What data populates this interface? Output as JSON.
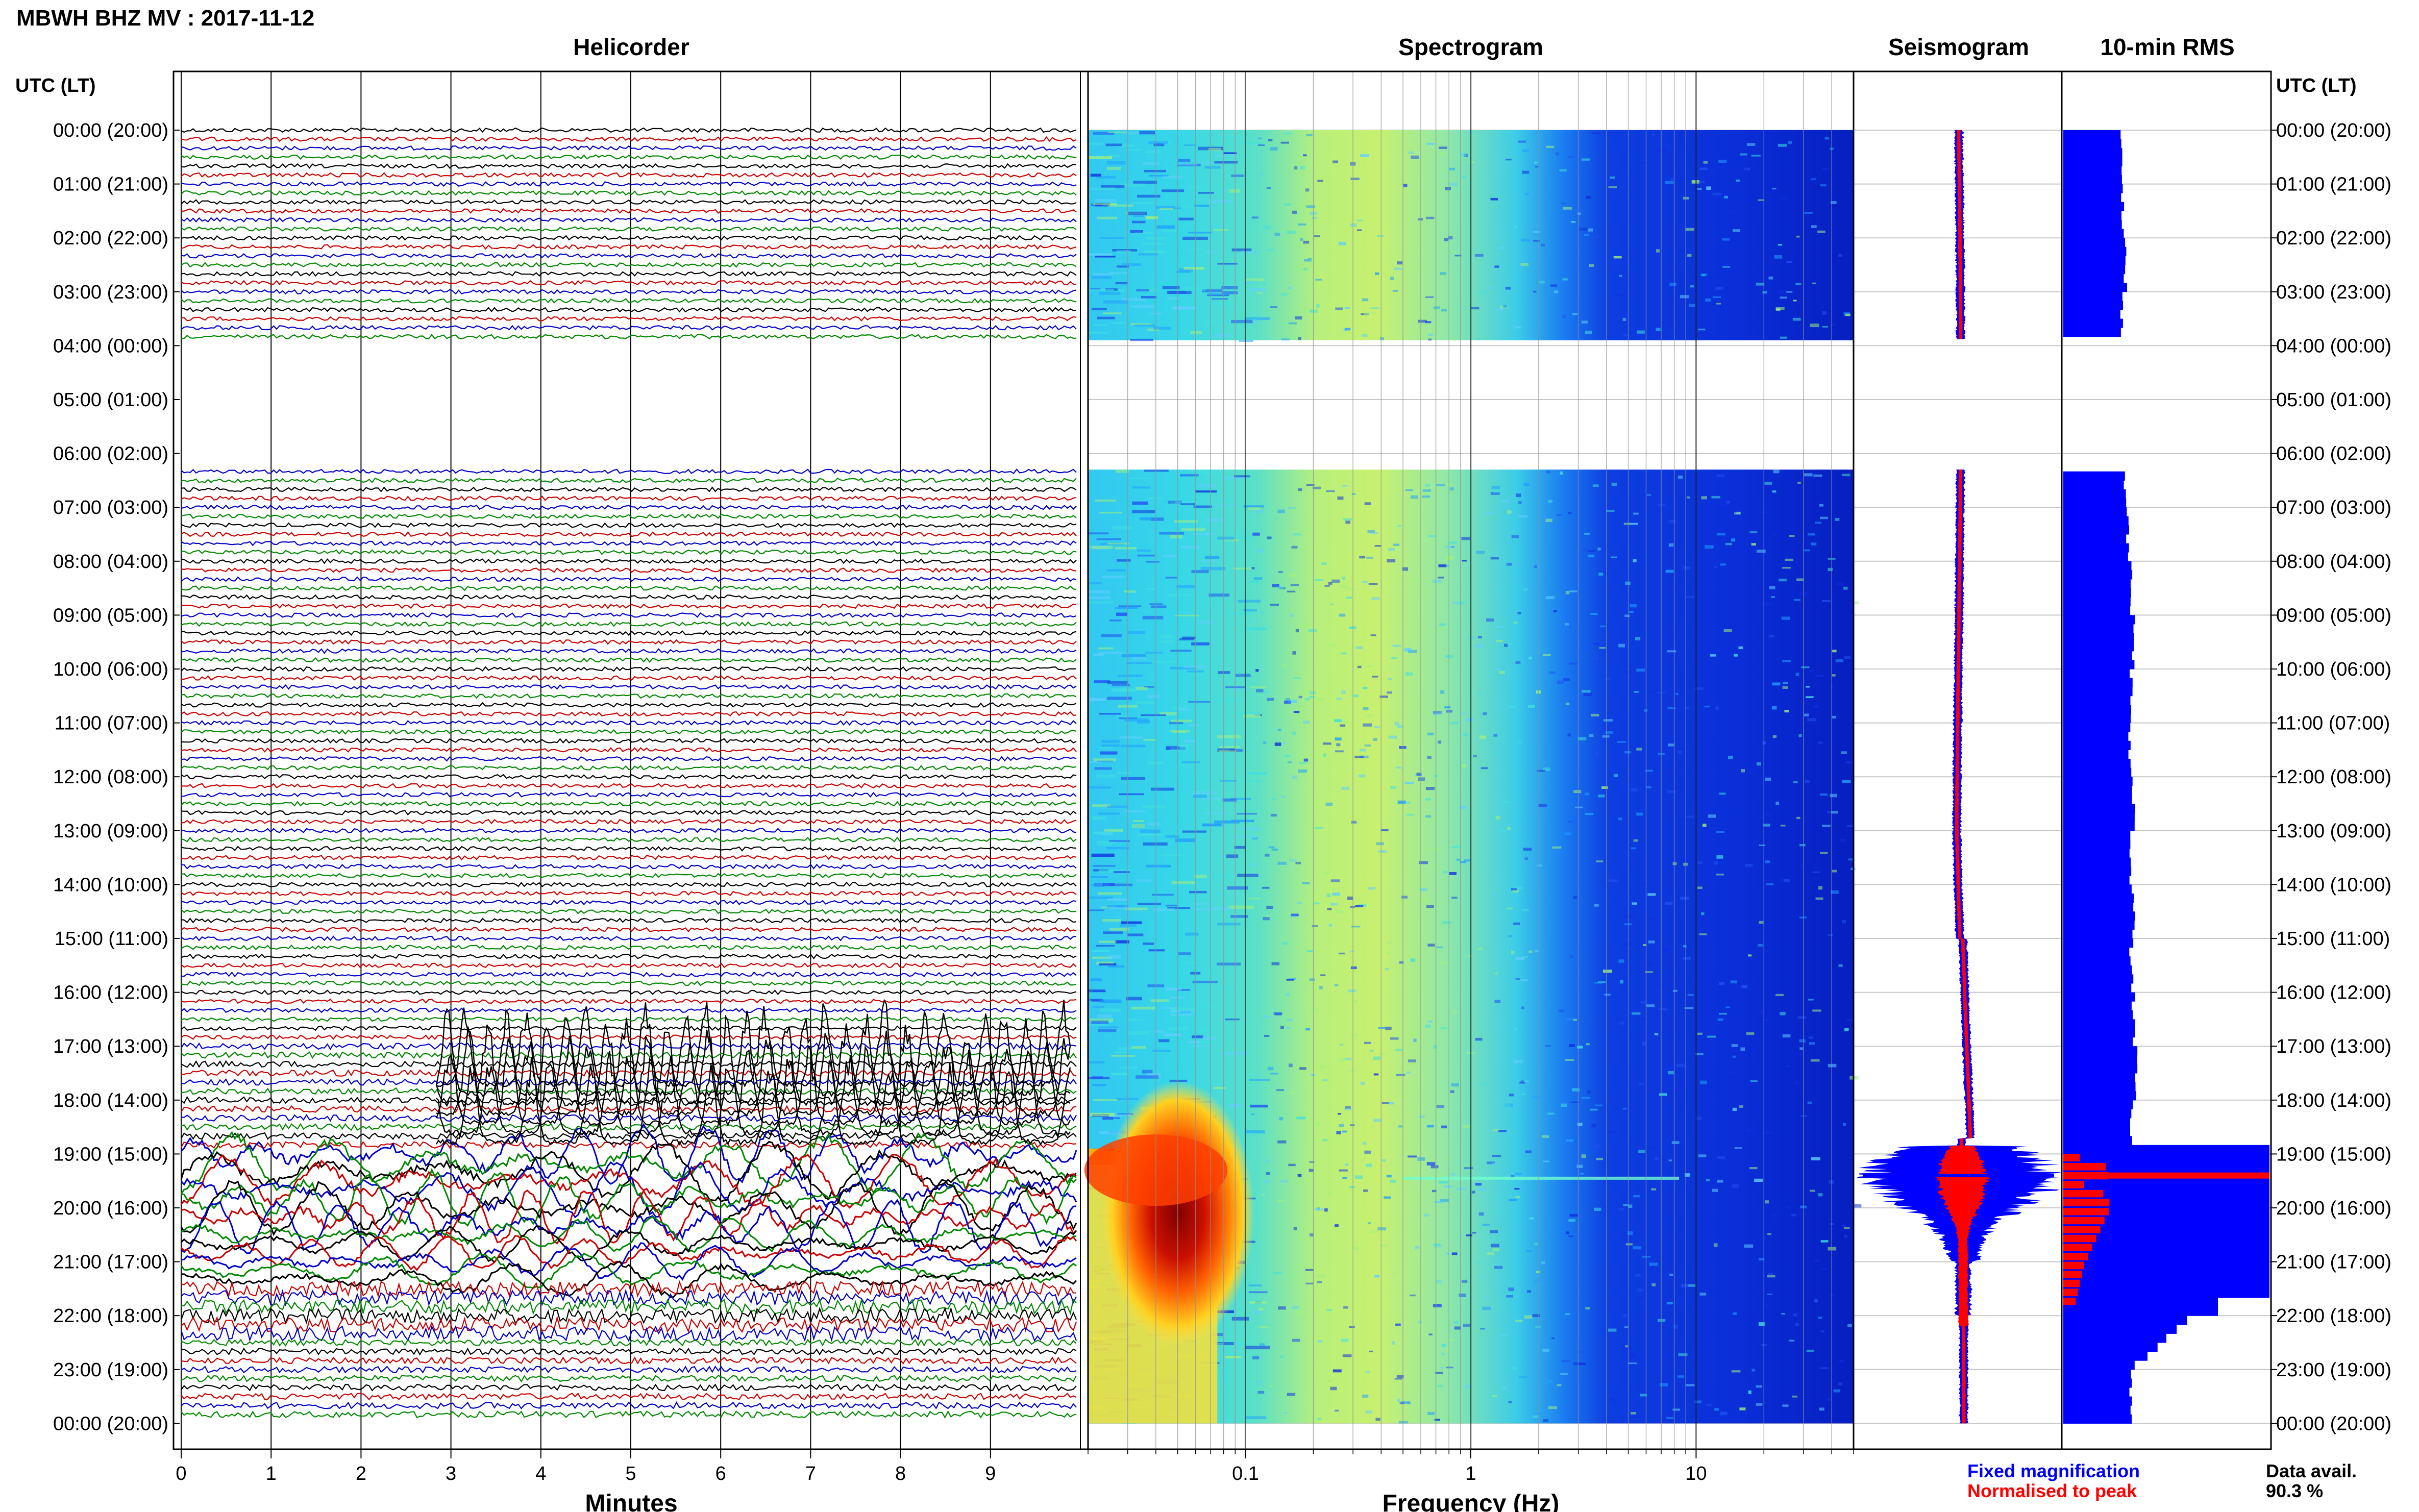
{
  "title": "MBWH BHZ MV : 2017-11-12",
  "panels": {
    "helicorder": "Helicorder",
    "spectrogram": "Spectrogram",
    "seismogram": "Seismogram",
    "rms": "10-min RMS"
  },
  "time_axis_label": "UTC (LT)",
  "hour_labels": [
    "00:00 (20:00)",
    "01:00 (21:00)",
    "02:00 (22:00)",
    "03:00 (23:00)",
    "04:00 (00:00)",
    "05:00 (01:00)",
    "06:00 (02:00)",
    "07:00 (03:00)",
    "08:00 (04:00)",
    "09:00 (05:00)",
    "10:00 (06:00)",
    "11:00 (07:00)",
    "12:00 (08:00)",
    "13:00 (09:00)",
    "14:00 (10:00)",
    "15:00 (11:00)",
    "16:00 (12:00)",
    "17:00 (13:00)",
    "18:00 (14:00)",
    "19:00 (15:00)",
    "20:00 (16:00)",
    "21:00 (17:00)",
    "22:00 (18:00)",
    "23:00 (19:00)",
    "00:00 (20:00)"
  ],
  "legend": {
    "fixed": "Fixed magnification",
    "normalised": "Normalised to peak",
    "fixed_color": "#0000ff",
    "normalised_color": "#ff0000"
  },
  "availability": {
    "label": "Data avail.",
    "value": "90.3 %"
  },
  "colors": {
    "trace_cycle": [
      "#000000",
      "#cc0000",
      "#0000cc",
      "#008800"
    ]
  },
  "chart_data": [
    {
      "type": "line",
      "title": "Helicorder",
      "xlabel": "Minutes",
      "ylabel": "UTC (LT)",
      "xlim": [
        0,
        10
      ],
      "x_ticks": [
        "0",
        "1",
        "2",
        "3",
        "4",
        "5",
        "6",
        "7",
        "8",
        "9"
      ],
      "row_minutes": 10,
      "data_gap_utc_hours": [
        3.9,
        6.3
      ],
      "event_onset_utc_hour": 18.9,
      "large_amplitude_hours": [
        17.0,
        22.5
      ]
    },
    {
      "type": "heatmap",
      "title": "Spectrogram",
      "xlabel": "Frequency (Hz)",
      "x_scale": "log",
      "xlim": [
        0.02,
        50
      ],
      "x_ticks": [
        "0.1",
        "1",
        "10"
      ],
      "colormap": "jet",
      "data_gap_utc_hours": [
        3.9,
        6.3
      ],
      "event_utc_hours": [
        18.9,
        22.0
      ],
      "event_peak_frequency_hz": 0.05,
      "tonal_line_hz": 7
    },
    {
      "type": "line",
      "title": "Seismogram",
      "series": [
        {
          "name": "Fixed magnification",
          "color": "#0000ff"
        },
        {
          "name": "Normalised to peak",
          "color": "#ff0000"
        }
      ],
      "peak_utc_hour": 19.4
    },
    {
      "type": "bar",
      "title": "10-min RMS",
      "orientation": "horizontal",
      "hour_starts": [
        0,
        1,
        2,
        3,
        6,
        7,
        8,
        9,
        10,
        11,
        12,
        13,
        14,
        15,
        16,
        17,
        18,
        19,
        20,
        21,
        22,
        23
      ],
      "values": [
        0.28,
        0.29,
        0.3,
        0.28,
        0.3,
        0.31,
        0.33,
        0.34,
        0.33,
        0.32,
        0.34,
        0.33,
        0.34,
        0.33,
        0.34,
        0.35,
        0.33,
        1.0,
        1.0,
        1.0,
        0.6,
        0.33
      ],
      "normalised_values": [
        0.05,
        0.05,
        0.05,
        0.05,
        0.05,
        0.05,
        0.05,
        0.05,
        0.05,
        0.05,
        0.05,
        0.05,
        0.05,
        0.05,
        0.05,
        0.05,
        0.05,
        0.18,
        0.26,
        0.12,
        0.05,
        0.05
      ],
      "peak_utc_hour": 19.4
    }
  ]
}
